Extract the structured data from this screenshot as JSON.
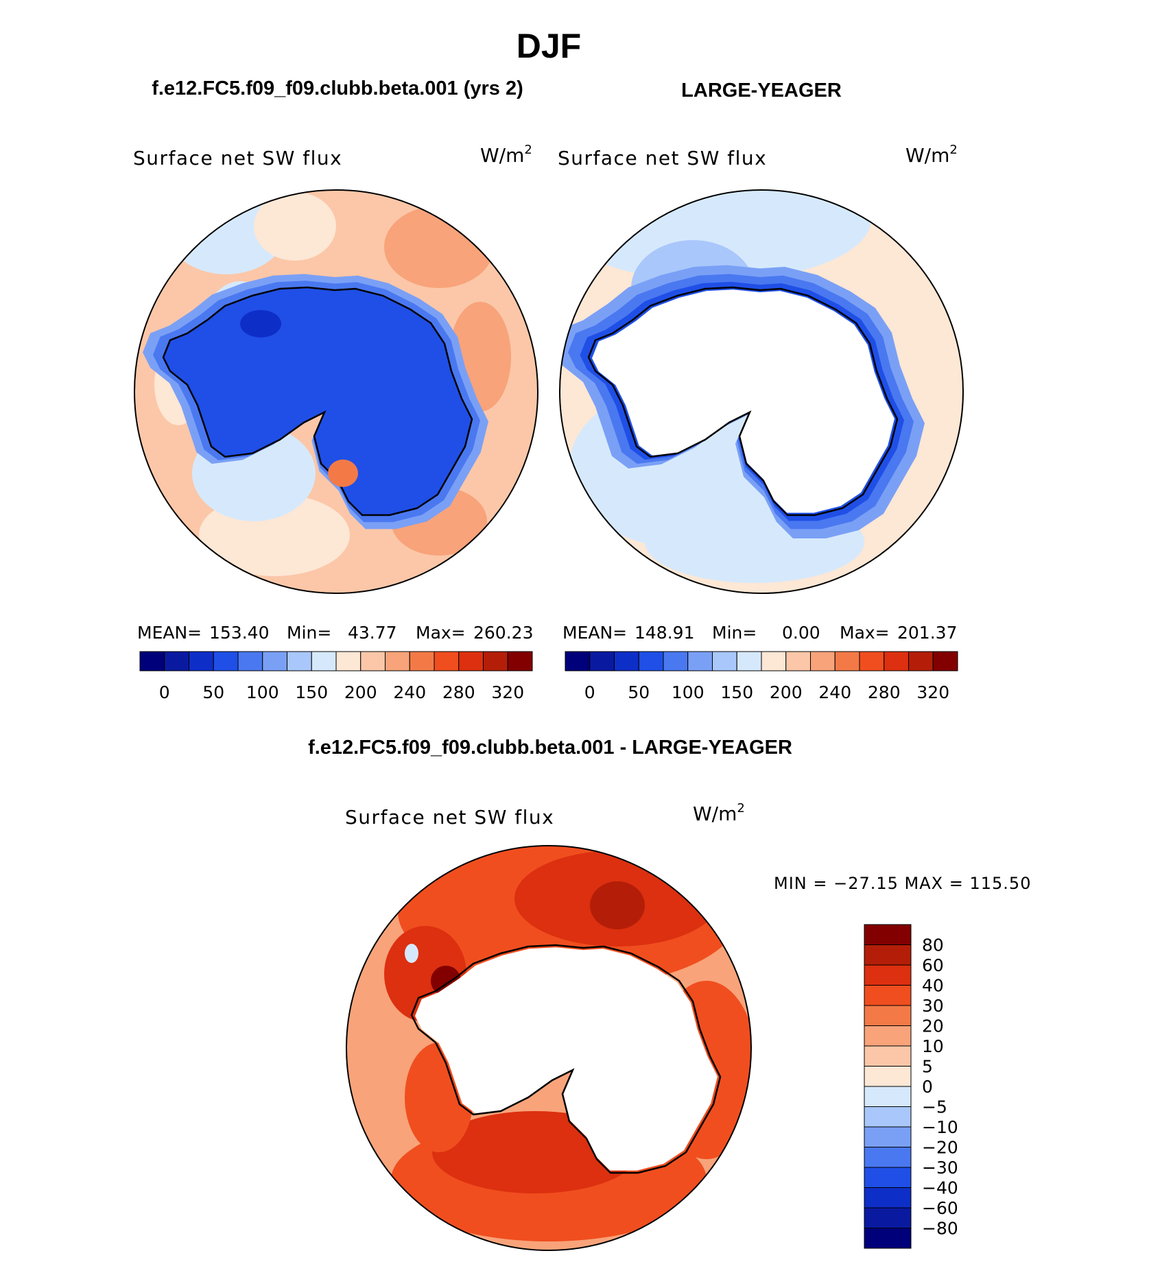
{
  "title": "DJF",
  "panels": [
    {
      "case_title": "f.e12.FC5.f09_f09.clubb.beta.001 (yrs 2)",
      "variable": "Surface net SW flux",
      "units": "W/m",
      "units_sup": "2",
      "stats": {
        "mean_label": "MEAN=",
        "mean": "153.40",
        "min_label": "Min=",
        "min": "43.77",
        "max_label": "Max=",
        "max": "260.23"
      }
    },
    {
      "case_title": "LARGE-YEAGER",
      "variable": "Surface net SW flux",
      "units": "W/m",
      "units_sup": "2",
      "stats": {
        "mean_label": "MEAN=",
        "mean": "148.91",
        "min_label": "Min=",
        "min": "0.00",
        "max_label": "Max=",
        "max": "201.37"
      }
    }
  ],
  "diff_panel": {
    "case_title": "f.e12.FC5.f09_f09.clubb.beta.001 - LARGE-YEAGER",
    "variable": "Surface net SW flux",
    "units": "W/m",
    "units_sup": "2",
    "minmax": "MIN = −27.15 MAX = 115.50"
  },
  "colorbar_abs": {
    "labels": [
      "0",
      "50",
      "100",
      "150",
      "200",
      "240",
      "280",
      "320"
    ],
    "colors": [
      "#00007a",
      "#0a1aa0",
      "#0e2ec8",
      "#1f4fe6",
      "#4a78f0",
      "#7aa0f6",
      "#a9c7fb",
      "#d6e9fc",
      "#fde7d5",
      "#fbc7a8",
      "#f8a37a",
      "#f37a47",
      "#f04e1f",
      "#dc3010",
      "#b41e08",
      "#820000"
    ]
  },
  "colorbar_diff": {
    "labels": [
      "80",
      "60",
      "40",
      "30",
      "20",
      "10",
      "5",
      "0",
      "−5",
      "−10",
      "−20",
      "−30",
      "−40",
      "−60",
      "−80"
    ],
    "colors": [
      "#820000",
      "#b41e08",
      "#dc3010",
      "#f04e1f",
      "#f37a47",
      "#f8a37a",
      "#fbc7a8",
      "#fde7d5",
      "#d6e9fc",
      "#a9c7fb",
      "#7aa0f6",
      "#4a78f0",
      "#1f4fe6",
      "#0e2ec8",
      "#0a1aa0",
      "#00007a"
    ]
  },
  "colors": {
    "ocean_warm_light": "#fbc7a8",
    "ocean_warm_pale": "#fde7d5",
    "ocean_cool_pale": "#d6e9fc",
    "ice_blue": "#1f4fe6",
    "diff_strong": "#dc3010",
    "diff_mid": "#f04e1f",
    "diff_light": "#f8a37a",
    "masked": "#ffffff"
  }
}
